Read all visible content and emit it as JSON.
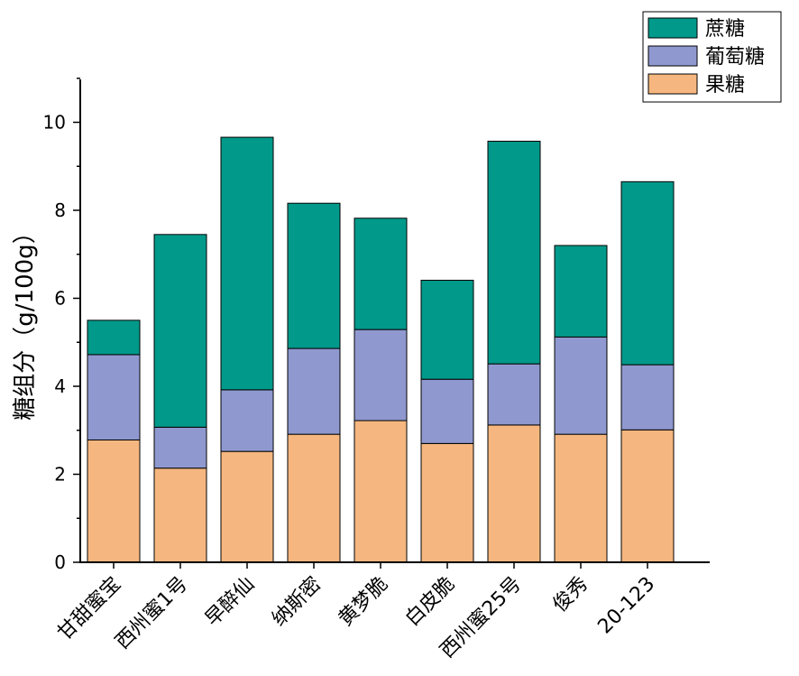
{
  "chart_data": {
    "type": "bar",
    "stacked": true,
    "categories": [
      "甘甜蜜宝",
      "西州蜜1号",
      "早醉仙",
      "纳斯密",
      "黄梦脆",
      "白皮脆",
      "西州蜜25号",
      "俊秀",
      "20-123"
    ],
    "series": [
      {
        "name": "果糖",
        "color": "#f5b77f",
        "values": [
          2.78,
          2.14,
          2.52,
          2.91,
          3.22,
          2.7,
          3.12,
          2.91,
          3.01
        ]
      },
      {
        "name": "葡萄糖",
        "color": "#8f99cf",
        "values": [
          1.94,
          0.93,
          1.4,
          1.95,
          2.07,
          1.46,
          1.39,
          2.21,
          1.48
        ]
      },
      {
        "name": "蔗糖",
        "color": "#00998a",
        "values": [
          0.78,
          4.38,
          5.74,
          3.3,
          2.53,
          2.25,
          5.06,
          2.08,
          4.16
        ]
      }
    ],
    "ylabel": "糖组分（g/100g）",
    "xlabel": "",
    "ylim": [
      0,
      11
    ],
    "yticks": [
      0,
      2,
      4,
      6,
      8,
      10
    ],
    "grid": false,
    "legend": {
      "position": "top-right",
      "entries": [
        "蔗糖",
        "葡萄糖",
        "果糖"
      ]
    }
  }
}
